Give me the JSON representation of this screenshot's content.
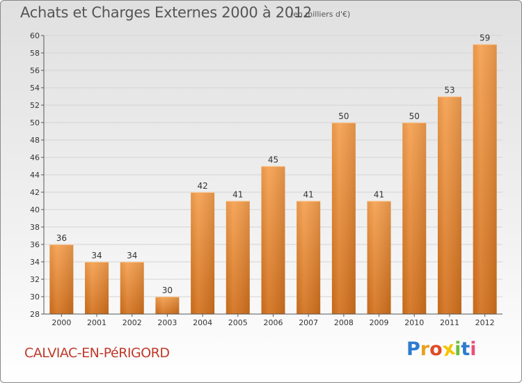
{
  "header": {
    "title": "Achats et Charges Externes 2000 à 2012",
    "subtitle": "(en milliers d'€)"
  },
  "footer": {
    "commune": "CALVIAC-EN-PéRIGORD",
    "brand_letters": [
      "P",
      "r",
      "o",
      "x",
      "i",
      "t",
      "i"
    ],
    "brand_colors": [
      "#2c7bd0",
      "#e8a020",
      "#e04a26",
      "#f5c400",
      "#6cbf3a",
      "#2c7bd0",
      "#e8507a"
    ]
  },
  "chart_data": {
    "type": "bar",
    "title": "Achats et Charges Externes 2000 à 2012",
    "subtitle": "(en milliers d'€)",
    "categories": [
      "2000",
      "2001",
      "2002",
      "2003",
      "2004",
      "2005",
      "2006",
      "2007",
      "2008",
      "2009",
      "2010",
      "2011",
      "2012"
    ],
    "values": [
      36,
      34,
      34,
      30,
      42,
      41,
      45,
      41,
      50,
      41,
      50,
      53,
      59
    ],
    "ylim": [
      28,
      60
    ],
    "yticks": [
      28,
      30,
      32,
      34,
      36,
      38,
      40,
      42,
      44,
      46,
      48,
      50,
      52,
      54,
      56,
      58,
      60
    ],
    "grid": true,
    "bar_color_top": "#f5a04f",
    "bar_color_bottom": "#d2701c",
    "axis_color": "#555555"
  }
}
